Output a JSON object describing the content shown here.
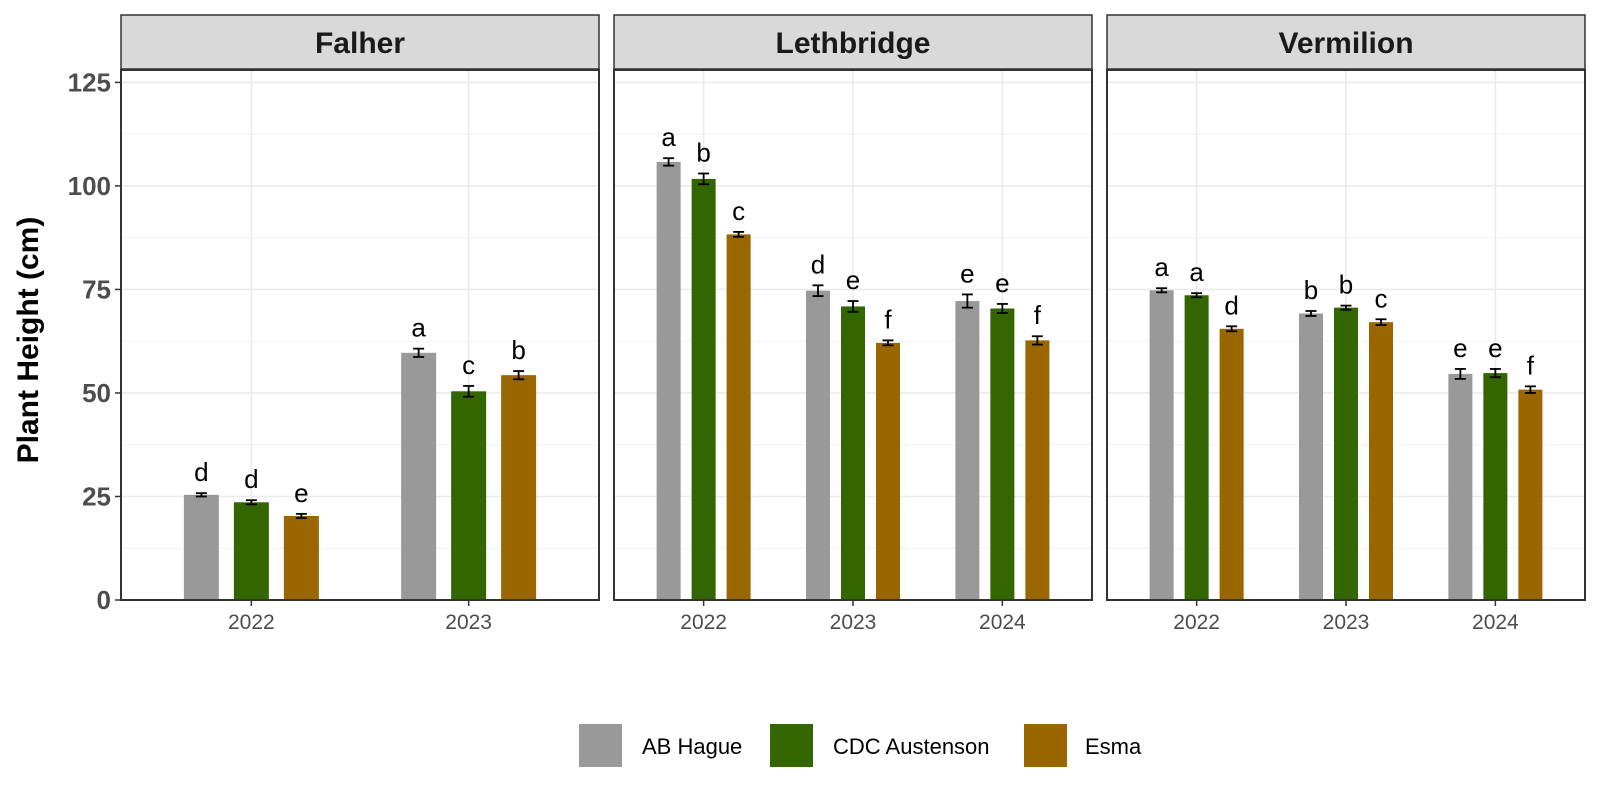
{
  "chart_data": {
    "type": "bar",
    "ylabel": "Plant Height (cm)",
    "xlabel": "",
    "ylim": [
      0,
      125
    ],
    "yticks": [
      0,
      25,
      50,
      75,
      100,
      125
    ],
    "grid": true,
    "legend_position": "bottom",
    "series": [
      {
        "name": "AB Hague",
        "color": "#999999"
      },
      {
        "name": "CDC Austenson",
        "color": "#336600"
      },
      {
        "name": "Esma",
        "color": "#996600"
      }
    ],
    "panels": [
      {
        "title": "Falher",
        "categories": [
          "2022",
          "2023"
        ],
        "values": [
          [
            25.4,
            23.6,
            20.3
          ],
          [
            59.7,
            50.4,
            54.3
          ]
        ],
        "errors": [
          [
            0.4,
            0.5,
            0.5
          ],
          [
            1.0,
            1.3,
            1.0
          ]
        ],
        "letters": [
          [
            "d",
            "d",
            "e"
          ],
          [
            "a",
            "c",
            "b"
          ]
        ]
      },
      {
        "title": "Lethbridge",
        "categories": [
          "2022",
          "2023",
          "2024"
        ],
        "values": [
          [
            105.8,
            101.7,
            88.3
          ],
          [
            74.7,
            70.9,
            62.1
          ],
          [
            72.2,
            70.4,
            62.7
          ]
        ],
        "errors": [
          [
            0.9,
            1.3,
            0.6
          ],
          [
            1.3,
            1.3,
            0.6
          ],
          [
            1.6,
            1.1,
            1.0
          ]
        ],
        "letters": [
          [
            "a",
            "b",
            "c"
          ],
          [
            "d",
            "e",
            "f"
          ],
          [
            "e",
            "e",
            "f"
          ]
        ]
      },
      {
        "title": "Vermilion",
        "categories": [
          "2022",
          "2023",
          "2024"
        ],
        "values": [
          [
            74.8,
            73.6,
            65.5
          ],
          [
            69.2,
            70.6,
            67.1
          ],
          [
            54.6,
            54.8,
            50.8
          ]
        ],
        "errors": [
          [
            0.5,
            0.5,
            0.6
          ],
          [
            0.6,
            0.5,
            0.7
          ],
          [
            1.2,
            1.0,
            0.8
          ]
        ],
        "letters": [
          [
            "a",
            "a",
            "d"
          ],
          [
            "b",
            "b",
            "c"
          ],
          [
            "e",
            "e",
            "f"
          ]
        ]
      }
    ]
  }
}
